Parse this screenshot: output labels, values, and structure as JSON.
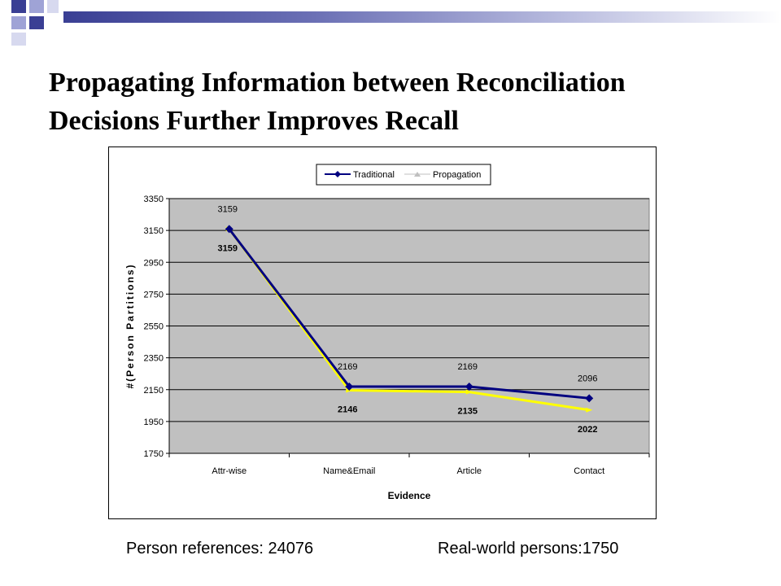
{
  "slide": {
    "title_line1": "Propagating Information between Reconciliation",
    "title_line2": "Decisions Further Improves Recall",
    "footer_left": "Person references: 24076",
    "footer_right": "Real-world persons:1750"
  },
  "colors": {
    "header_dark": "#3a3f94",
    "header_light": "#b9bcdf",
    "plot_background": "#c0c0c0",
    "traditional_series": "#000080",
    "propagation_series": "#ffff00"
  },
  "chart_data": {
    "type": "line",
    "categories": [
      "Attr-wise",
      "Name&Email",
      "Article",
      "Contact"
    ],
    "series": [
      {
        "name": "Traditional",
        "values": [
          3159,
          2169,
          2169,
          2096
        ],
        "data_labels": [
          "3159",
          "2169",
          "2169",
          "2096"
        ],
        "marker": "diamond"
      },
      {
        "name": "Propagation",
        "values": [
          3159,
          2146,
          2135,
          2022
        ],
        "data_labels": [
          "3159",
          "2146",
          "2135",
          "2022"
        ],
        "marker": "triangle"
      }
    ],
    "xlabel": "Evidence",
    "ylabel": "#(Person Partitions)",
    "ylim": [
      1750,
      3350
    ],
    "yticks": [
      1750,
      1950,
      2150,
      2350,
      2550,
      2750,
      2950,
      3150,
      3350
    ],
    "grid": "horizontal",
    "legend_position": "top"
  }
}
